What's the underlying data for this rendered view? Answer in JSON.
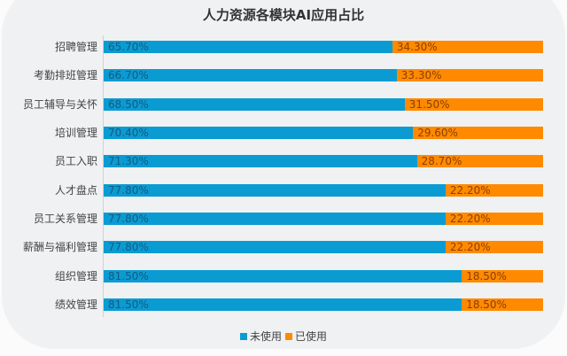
{
  "chart_data": {
    "type": "bar",
    "stacked": true,
    "orientation": "horizontal",
    "title": "人力资源各模块AI应用占比",
    "categories": [
      "招聘管理",
      "考勤排班管理",
      "员工辅导与关怀",
      "培训管理",
      "员工入职",
      "人才盘点",
      "员工关系管理",
      "薪酬与福利管理",
      "组织管理",
      "绩效管理"
    ],
    "series": [
      {
        "name": "未使用",
        "color": "#0a9bd3",
        "values": [
          65.7,
          66.7,
          68.5,
          70.4,
          71.3,
          77.8,
          77.8,
          77.8,
          81.5,
          81.5
        ],
        "labels": [
          "65.70%",
          "66.70%",
          "68.50%",
          "70.40%",
          "71.30%",
          "77.80%",
          "77.80%",
          "77.80%",
          "81.50%",
          "81.50%"
        ]
      },
      {
        "name": "已使用",
        "color": "#ff8a00",
        "values": [
          34.3,
          33.3,
          31.5,
          29.6,
          28.7,
          22.2,
          22.2,
          22.2,
          18.5,
          18.5
        ],
        "labels": [
          "34.30%",
          "33.30%",
          "31.50%",
          "29.60%",
          "28.70%",
          "22.20%",
          "22.20%",
          "22.20%",
          "18.50%",
          "18.50%"
        ]
      }
    ],
    "xlim": [
      0,
      100
    ],
    "legend": "bottom"
  }
}
